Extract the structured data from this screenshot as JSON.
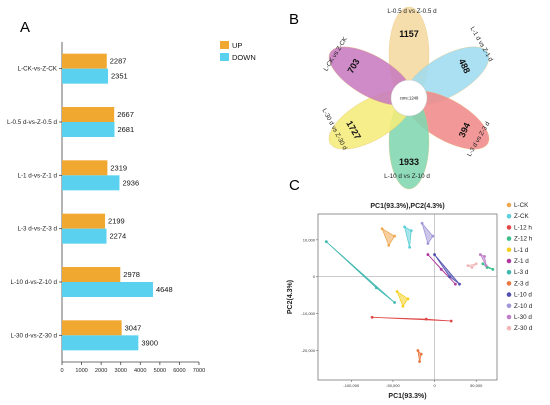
{
  "panel_labels": {
    "a": "A",
    "b": "B",
    "c": "C"
  },
  "chart_data": [
    {
      "panel": "A",
      "type": "bar",
      "orientation": "horizontal",
      "categories": [
        "L-CK-vs-Z-CK",
        "L-0.5 d-vs-Z-0.5 d",
        "L-1 d-vs-Z-1 d",
        "L-3 d-vs-Z-3 d",
        "L-10 d-vs-Z-10 d",
        "L-30 d-vs-Z-30 d"
      ],
      "series": [
        {
          "name": "UP",
          "color": "#f0a830",
          "values": [
            2287,
            2667,
            2319,
            2199,
            2978,
            3047
          ]
        },
        {
          "name": "DOWN",
          "color": "#5bd1f0",
          "values": [
            2351,
            2681,
            2936,
            2274,
            4648,
            3900
          ]
        }
      ],
      "xlim": [
        0,
        7000
      ],
      "xticks": [
        "0",
        "1000",
        "2000",
        "3000",
        "4000",
        "5000",
        "6000",
        "7000"
      ],
      "legend": "top-right"
    },
    {
      "panel": "B",
      "type": "flower-venn",
      "core_label": "core:1249",
      "petals": [
        {
          "name": "L-0.5 d vs Z-0.5 d",
          "value": "1157",
          "color": "#f5d9a0"
        },
        {
          "name": "L-1 d vs Z-1 d",
          "value": "488",
          "color": "#9fdcf0"
        },
        {
          "name": "L-3 d vs Z-3 d",
          "value": "394",
          "color": "#f08a8a"
        },
        {
          "name": "L-10 d vs Z-10 d",
          "value": "1933",
          "color": "#7fd6b0"
        },
        {
          "name": "L-30 d vs Z-30 d",
          "value": "1727",
          "color": "#f5ec7a"
        },
        {
          "name": "L-CK vs Z-CK",
          "value": "703",
          "color": "#c77bbf"
        }
      ]
    },
    {
      "panel": "C",
      "type": "scatter",
      "title": "PC1(93.3%),PC2(4.3%)",
      "xlabel": "PC1(93.3%)",
      "ylabel": "PC2(4.3%)",
      "xlim": [
        -140000,
        75000
      ],
      "ylim": [
        -28000,
        17000
      ],
      "xticks": [
        "-100,000",
        "-50,000",
        "0",
        "50,000"
      ],
      "yticks": [
        "10,000",
        "0",
        "-10,000",
        "-20,000"
      ],
      "legend": "right",
      "groups": [
        {
          "name": "L-CK",
          "color": "#f0a850",
          "points": [
            [
              -63000,
              13000
            ],
            [
              -48000,
              11000
            ],
            [
              -55000,
              8500
            ]
          ]
        },
        {
          "name": "Z-CK",
          "color": "#5ccfd8",
          "points": [
            [
              -36000,
              13500
            ],
            [
              -28000,
              12500
            ],
            [
              -30000,
              8000
            ]
          ]
        },
        {
          "name": "L-12 h",
          "color": "#e04848",
          "points": [
            [
              -75000,
              -11000
            ],
            [
              -10000,
              -11500
            ],
            [
              20000,
              -12000
            ]
          ]
        },
        {
          "name": "Z-12 h",
          "color": "#3cbf8a",
          "points": [
            [
              58000,
              3500
            ],
            [
              63000,
              2500
            ],
            [
              70000,
              2000
            ]
          ]
        },
        {
          "name": "L-1 d",
          "color": "#f5d020",
          "points": [
            [
              -45000,
              -4000
            ],
            [
              -32000,
              -6000
            ],
            [
              -38000,
              -8000
            ]
          ]
        },
        {
          "name": "Z-1 d",
          "color": "#b03aa0",
          "points": [
            [
              -8000,
              6000
            ],
            [
              8000,
              2000
            ],
            [
              25000,
              -2000
            ]
          ]
        },
        {
          "name": "L-3 d",
          "color": "#40b8b0",
          "points": [
            [
              -130000,
              9500
            ],
            [
              -70000,
              -3000
            ],
            [
              -48000,
              -7000
            ]
          ]
        },
        {
          "name": "Z-3 d",
          "color": "#e87840",
          "points": [
            [
              -20000,
              -20000
            ],
            [
              -16000,
              -21000
            ],
            [
              -18000,
              -23000
            ]
          ]
        },
        {
          "name": "L-10 d",
          "color": "#5050b0",
          "points": [
            [
              0,
              6000
            ],
            [
              18000,
              0
            ],
            [
              30000,
              -2000
            ]
          ]
        },
        {
          "name": "Z-10 d",
          "color": "#a098d8",
          "points": [
            [
              -15000,
              14500
            ],
            [
              -8000,
              9000
            ],
            [
              -2000,
              11000
            ]
          ]
        },
        {
          "name": "L-30 d",
          "color": "#c080c8",
          "points": [
            [
              55000,
              6000
            ],
            [
              60000,
              5500
            ],
            [
              62000,
              3000
            ]
          ]
        },
        {
          "name": "Z-30 d",
          "color": "#f0b8b8",
          "points": [
            [
              40000,
              3000
            ],
            [
              45000,
              2500
            ],
            [
              50000,
              3500
            ]
          ]
        }
      ]
    }
  ]
}
